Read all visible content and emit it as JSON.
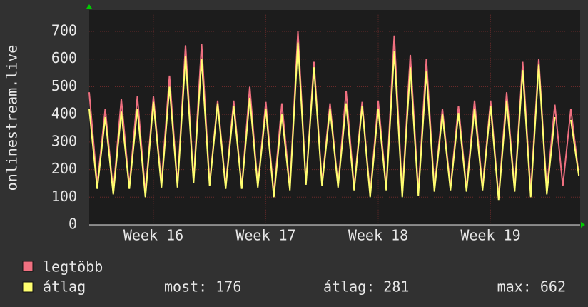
{
  "chart_data": {
    "type": "line",
    "ylabel": "onlinestream.live",
    "categories": [
      null,
      null,
      null,
      null,
      null,
      null,
      null,
      null,
      "Week 16",
      null,
      null,
      null,
      null,
      null,
      null,
      null,
      null,
      null,
      null,
      null,
      null,
      null,
      "Week 17",
      null,
      null,
      null,
      null,
      null,
      null,
      null,
      null,
      null,
      null,
      null,
      null,
      null,
      "Week 18",
      null,
      null,
      null,
      null,
      null,
      null,
      null,
      null,
      null,
      null,
      null,
      null,
      null,
      "Week 19",
      null,
      null,
      null,
      null,
      null,
      null,
      null,
      null,
      null,
      null,
      null
    ],
    "series": [
      {
        "name": "legtöbb",
        "color": "#f07080",
        "values": [
          480,
          145,
          420,
          120,
          455,
          140,
          465,
          115,
          465,
          150,
          540,
          145,
          650,
          160,
          655,
          150,
          450,
          140,
          450,
          135,
          500,
          140,
          445,
          110,
          440,
          135,
          700,
          150,
          590,
          150,
          440,
          140,
          485,
          135,
          445,
          110,
          450,
          135,
          685,
          110,
          615,
          120,
          600,
          130,
          420,
          135,
          430,
          130,
          450,
          135,
          450,
          100,
          480,
          130,
          590,
          120,
          600,
          125,
          435,
          140,
          420,
          180
        ]
      },
      {
        "name": "átlag",
        "color": "#ffff70",
        "values": [
          420,
          130,
          390,
          110,
          410,
          130,
          420,
          100,
          445,
          135,
          500,
          135,
          610,
          150,
          600,
          140,
          440,
          130,
          430,
          130,
          460,
          135,
          420,
          100,
          400,
          125,
          660,
          145,
          570,
          140,
          420,
          135,
          440,
          125,
          430,
          100,
          420,
          125,
          630,
          100,
          570,
          105,
          555,
          120,
          400,
          125,
          405,
          120,
          420,
          125,
          430,
          90,
          450,
          120,
          560,
          100,
          580,
          110,
          390,
          null,
          380,
          176
        ]
      }
    ],
    "legend_stats": [
      "most: 176",
      "átlag: 281",
      "max: 662"
    ],
    "ylim": [
      0,
      760
    ],
    "yticks": [
      0,
      100,
      200,
      300,
      400,
      500,
      600,
      700
    ],
    "grid": true
  }
}
